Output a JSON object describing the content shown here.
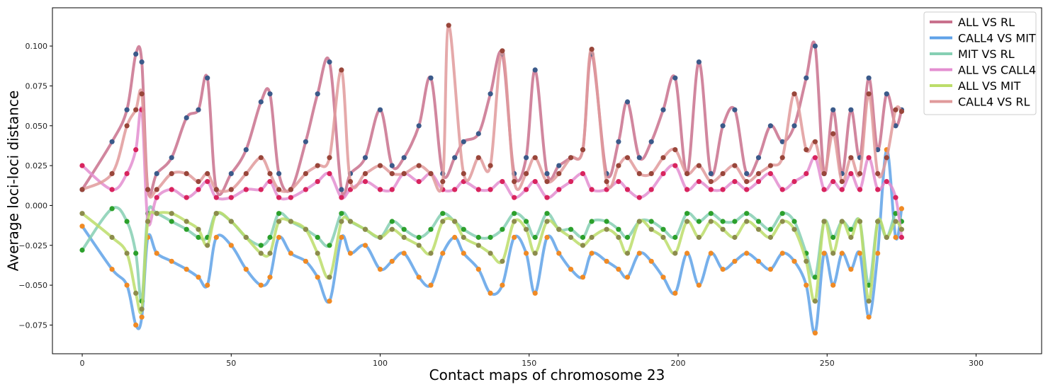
{
  "chart_data": {
    "type": "line",
    "xlabel": "Contact maps of chromosome 23",
    "ylabel": "Average loci-loci distance",
    "xlim": [
      -10,
      322
    ],
    "ylim": [
      -0.093,
      0.124
    ],
    "xticks": [
      0,
      50,
      100,
      150,
      200,
      250,
      300
    ],
    "yticks": [
      -0.075,
      -0.05,
      -0.025,
      0.0,
      0.025,
      0.05,
      0.075,
      0.1
    ],
    "xtick_labels": [
      "0",
      "50",
      "100",
      "150",
      "200",
      "250",
      "300"
    ],
    "ytick_labels": [
      "−0.075",
      "−0.050",
      "−0.025",
      "0.000",
      "0.025",
      "0.050",
      "0.075",
      "0.100"
    ],
    "grid": false,
    "legend_position": "top-right",
    "markers": true,
    "series": [
      {
        "name": "ALL VS RL",
        "color": "#c9718d",
        "marker_color": "#3b5a8a",
        "x": [
          0,
          10,
          15,
          18,
          20,
          22,
          25,
          30,
          35,
          39,
          42,
          45,
          50,
          55,
          60,
          63,
          66,
          70,
          75,
          79,
          83,
          87,
          90,
          95,
          100,
          104,
          108,
          113,
          117,
          121,
          125,
          128,
          133,
          137,
          141,
          145,
          149,
          152,
          156,
          160,
          164,
          168,
          171,
          176,
          180,
          183,
          187,
          191,
          195,
          199,
          203,
          207,
          211,
          215,
          219,
          223,
          227,
          231,
          235,
          239,
          243,
          246,
          249,
          252,
          255,
          258,
          261,
          264,
          267,
          270,
          273,
          275
        ],
        "y": [
          0.01,
          0.04,
          0.06,
          0.095,
          0.09,
          0.01,
          0.02,
          0.03,
          0.055,
          0.06,
          0.08,
          0.01,
          0.02,
          0.035,
          0.065,
          0.07,
          0.02,
          0.01,
          0.04,
          0.07,
          0.09,
          0.01,
          0.02,
          0.03,
          0.06,
          0.025,
          0.03,
          0.05,
          0.08,
          0.02,
          0.03,
          0.04,
          0.045,
          0.07,
          0.095,
          0.02,
          0.03,
          0.085,
          0.02,
          0.025,
          0.03,
          0.035,
          0.095,
          0.02,
          0.04,
          0.065,
          0.03,
          0.04,
          0.06,
          0.08,
          0.02,
          0.09,
          0.02,
          0.05,
          0.06,
          0.02,
          0.03,
          0.05,
          0.04,
          0.05,
          0.08,
          0.1,
          0.02,
          0.06,
          0.02,
          0.06,
          0.03,
          0.08,
          0.035,
          0.07,
          0.05,
          0.06
        ]
      },
      {
        "name": "CALL4 VS MIT",
        "color": "#5fa2e8",
        "marker_color": "#f08a24",
        "x": [
          0,
          10,
          15,
          18,
          20,
          22,
          25,
          30,
          35,
          39,
          42,
          45,
          50,
          55,
          60,
          63,
          66,
          70,
          75,
          79,
          83,
          87,
          90,
          95,
          100,
          104,
          108,
          113,
          117,
          121,
          125,
          128,
          133,
          137,
          141,
          145,
          149,
          152,
          156,
          160,
          164,
          168,
          171,
          176,
          180,
          183,
          187,
          191,
          195,
          199,
          203,
          207,
          211,
          215,
          219,
          223,
          227,
          231,
          235,
          239,
          243,
          246,
          249,
          252,
          255,
          258,
          261,
          264,
          267,
          270,
          273,
          275
        ],
        "y": [
          -0.013,
          -0.04,
          -0.05,
          -0.075,
          -0.07,
          -0.02,
          -0.03,
          -0.035,
          -0.04,
          -0.045,
          -0.05,
          -0.02,
          -0.025,
          -0.04,
          -0.05,
          -0.045,
          -0.02,
          -0.03,
          -0.035,
          -0.045,
          -0.06,
          -0.02,
          -0.03,
          -0.025,
          -0.04,
          -0.035,
          -0.03,
          -0.045,
          -0.05,
          -0.03,
          -0.02,
          -0.03,
          -0.04,
          -0.055,
          -0.05,
          -0.02,
          -0.03,
          -0.055,
          -0.02,
          -0.03,
          -0.04,
          -0.045,
          -0.03,
          -0.035,
          -0.04,
          -0.045,
          -0.03,
          -0.035,
          -0.045,
          -0.055,
          -0.03,
          -0.05,
          -0.03,
          -0.04,
          -0.035,
          -0.03,
          -0.035,
          -0.04,
          -0.03,
          -0.035,
          -0.05,
          -0.08,
          -0.03,
          -0.05,
          -0.03,
          -0.04,
          -0.03,
          -0.07,
          -0.03,
          0.035,
          -0.02,
          -0.002
        ]
      },
      {
        "name": "MIT VS RL",
        "color": "#86cfb3",
        "marker_color": "#2ca02c",
        "x": [
          0,
          10,
          15,
          18,
          20,
          22,
          25,
          30,
          35,
          39,
          42,
          45,
          50,
          55,
          60,
          63,
          66,
          70,
          75,
          79,
          83,
          87,
          90,
          95,
          100,
          104,
          108,
          113,
          117,
          121,
          125,
          128,
          133,
          137,
          141,
          145,
          149,
          152,
          156,
          160,
          164,
          168,
          171,
          176,
          180,
          183,
          187,
          191,
          195,
          199,
          203,
          207,
          211,
          215,
          219,
          223,
          227,
          231,
          235,
          239,
          243,
          246,
          249,
          252,
          255,
          258,
          261,
          264,
          267,
          270,
          273,
          275
        ],
        "y": [
          -0.028,
          -0.002,
          -0.01,
          -0.03,
          -0.06,
          -0.005,
          -0.005,
          -0.01,
          -0.015,
          -0.02,
          -0.02,
          -0.005,
          -0.01,
          -0.02,
          -0.025,
          -0.02,
          -0.005,
          -0.01,
          -0.015,
          -0.02,
          -0.025,
          -0.005,
          -0.01,
          -0.015,
          -0.02,
          -0.01,
          -0.015,
          -0.02,
          -0.015,
          -0.005,
          -0.01,
          -0.015,
          -0.02,
          -0.02,
          -0.015,
          -0.005,
          -0.01,
          -0.02,
          -0.005,
          -0.015,
          -0.015,
          -0.02,
          -0.01,
          -0.01,
          -0.015,
          -0.02,
          -0.01,
          -0.01,
          -0.015,
          -0.02,
          -0.005,
          -0.01,
          -0.005,
          -0.01,
          -0.01,
          -0.005,
          -0.01,
          -0.015,
          -0.005,
          -0.01,
          -0.03,
          -0.045,
          -0.01,
          -0.02,
          -0.01,
          -0.015,
          -0.01,
          -0.05,
          -0.01,
          -0.02,
          -0.005,
          -0.01
        ]
      },
      {
        "name": "ALL VS CALL4",
        "color": "#e38ed0",
        "marker_color": "#d8245e",
        "x": [
          0,
          10,
          15,
          18,
          20,
          22,
          25,
          30,
          35,
          39,
          42,
          45,
          50,
          55,
          60,
          63,
          66,
          70,
          75,
          79,
          83,
          87,
          90,
          95,
          100,
          104,
          108,
          113,
          117,
          121,
          125,
          128,
          133,
          137,
          141,
          145,
          149,
          152,
          156,
          160,
          164,
          168,
          171,
          176,
          180,
          183,
          187,
          191,
          195,
          199,
          203,
          207,
          211,
          215,
          219,
          223,
          227,
          231,
          235,
          239,
          243,
          246,
          249,
          252,
          255,
          258,
          261,
          264,
          267,
          270,
          273,
          275
        ],
        "y": [
          0.025,
          0.01,
          0.02,
          0.035,
          0.06,
          -0.01,
          0.005,
          0.01,
          0.005,
          0.01,
          0.015,
          0.005,
          0.005,
          0.01,
          0.01,
          0.015,
          0.005,
          0.005,
          0.01,
          0.015,
          0.02,
          0.005,
          0.01,
          0.015,
          0.01,
          0.01,
          0.02,
          0.015,
          0.02,
          0.01,
          0.01,
          0.015,
          0.01,
          0.01,
          0.015,
          0.005,
          0.01,
          0.015,
          0.005,
          0.01,
          0.015,
          0.02,
          0.01,
          0.01,
          0.015,
          0.01,
          0.005,
          0.01,
          0.02,
          0.025,
          0.01,
          0.015,
          0.01,
          0.01,
          0.015,
          0.01,
          0.015,
          0.02,
          0.01,
          0.015,
          0.02,
          0.03,
          0.01,
          0.015,
          0.01,
          0.02,
          0.01,
          0.03,
          0.01,
          0.015,
          0.005,
          -0.02
        ]
      },
      {
        "name": "ALL VS MIT",
        "color": "#bcdd6a",
        "marker_color": "#8c8c4c",
        "x": [
          0,
          10,
          15,
          18,
          20,
          22,
          25,
          30,
          35,
          39,
          42,
          45,
          50,
          55,
          60,
          63,
          66,
          70,
          75,
          79,
          83,
          87,
          90,
          95,
          100,
          104,
          108,
          113,
          117,
          121,
          125,
          128,
          133,
          137,
          141,
          145,
          149,
          152,
          156,
          160,
          164,
          168,
          171,
          176,
          180,
          183,
          187,
          191,
          195,
          199,
          203,
          207,
          211,
          215,
          219,
          223,
          227,
          231,
          235,
          239,
          243,
          246,
          249,
          252,
          255,
          258,
          261,
          264,
          267,
          270,
          273,
          275
        ],
        "y": [
          -0.005,
          -0.02,
          -0.03,
          -0.055,
          -0.065,
          -0.01,
          -0.005,
          -0.005,
          -0.01,
          -0.015,
          -0.025,
          -0.005,
          -0.01,
          -0.02,
          -0.03,
          -0.03,
          -0.01,
          -0.01,
          -0.015,
          -0.03,
          -0.045,
          -0.01,
          -0.01,
          -0.015,
          -0.02,
          -0.015,
          -0.02,
          -0.025,
          -0.03,
          -0.01,
          -0.01,
          -0.02,
          -0.025,
          -0.03,
          -0.035,
          -0.01,
          -0.015,
          -0.03,
          -0.01,
          -0.015,
          -0.02,
          -0.025,
          -0.02,
          -0.015,
          -0.02,
          -0.03,
          -0.01,
          -0.015,
          -0.02,
          -0.03,
          -0.01,
          -0.02,
          -0.01,
          -0.015,
          -0.02,
          -0.01,
          -0.015,
          -0.02,
          -0.01,
          -0.015,
          -0.035,
          -0.06,
          -0.01,
          -0.03,
          -0.01,
          -0.02,
          -0.01,
          -0.06,
          -0.01,
          -0.02,
          -0.01,
          -0.015
        ]
      },
      {
        "name": "CALL4 VS RL",
        "color": "#e09a9b",
        "marker_color": "#99463a",
        "x": [
          0,
          10,
          15,
          18,
          20,
          22,
          25,
          30,
          35,
          39,
          42,
          45,
          50,
          55,
          60,
          63,
          66,
          70,
          75,
          79,
          83,
          87,
          90,
          95,
          100,
          104,
          108,
          113,
          117,
          121,
          123,
          128,
          133,
          137,
          141,
          145,
          149,
          152,
          156,
          160,
          164,
          168,
          171,
          176,
          180,
          183,
          187,
          191,
          195,
          199,
          203,
          207,
          211,
          215,
          219,
          223,
          227,
          231,
          235,
          239,
          243,
          246,
          249,
          252,
          255,
          258,
          261,
          264,
          267,
          270,
          273,
          275
        ],
        "y": [
          0.01,
          0.02,
          0.05,
          0.06,
          0.07,
          0.01,
          0.01,
          0.02,
          0.02,
          0.015,
          0.02,
          0.01,
          0.01,
          0.02,
          0.03,
          0.02,
          0.01,
          0.01,
          0.02,
          0.025,
          0.03,
          0.085,
          0.015,
          0.02,
          0.025,
          0.02,
          0.02,
          0.025,
          0.02,
          0.015,
          0.113,
          0.02,
          0.03,
          0.025,
          0.097,
          0.015,
          0.02,
          0.03,
          0.015,
          0.02,
          0.03,
          0.035,
          0.098,
          0.015,
          0.025,
          0.03,
          0.02,
          0.02,
          0.03,
          0.035,
          0.02,
          0.025,
          0.015,
          0.02,
          0.025,
          0.015,
          0.02,
          0.025,
          0.03,
          0.07,
          0.035,
          0.04,
          0.02,
          0.045,
          0.015,
          0.03,
          0.02,
          0.07,
          0.02,
          0.03,
          0.06,
          0.059
        ]
      }
    ]
  }
}
